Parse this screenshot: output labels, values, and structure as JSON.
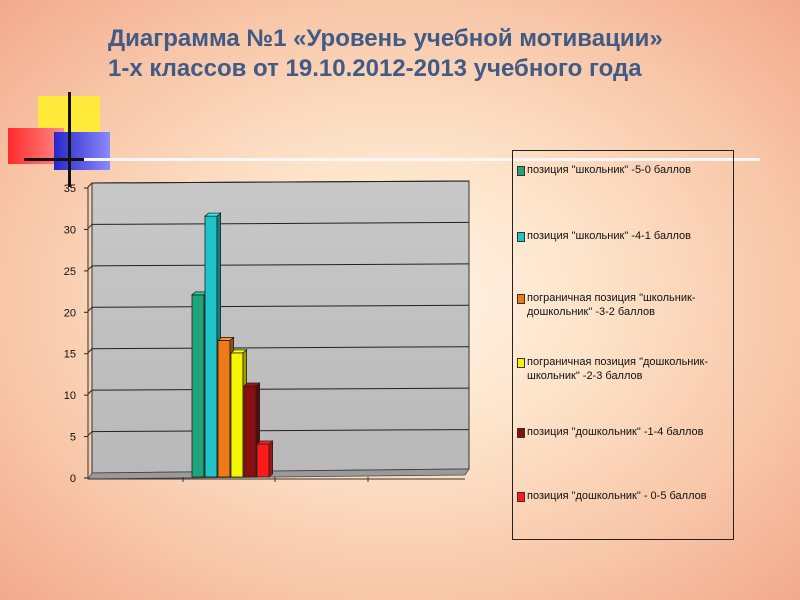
{
  "title_line1": "Диаграмма №1 «Уровень учебной мотивации»",
  "title_line2": "1-х классов от 19.10.2012-2013 учебного года",
  "chart_data": {
    "type": "bar",
    "title": "",
    "xlabel": "",
    "ylabel": "",
    "ylim": [
      0,
      35
    ],
    "yticks": [
      0,
      5,
      10,
      15,
      20,
      25,
      30,
      35
    ],
    "grid": true,
    "legend_position": "right",
    "series": [
      {
        "name": "позиция \"школьник\" -5-0 баллов",
        "values": [
          21.5
        ],
        "color": "#1fa37a"
      },
      {
        "name": "позиция \"школьник\" -4-1 баллов",
        "values": [
          31
        ],
        "color": "#20c3c8"
      },
      {
        "name": "пограничная позиция \"школьник-дошкольник\" -3-2 баллов",
        "values": [
          16
        ],
        "color": "#f07a18"
      },
      {
        "name": "пограничная позиция \"дошкольник-школьник\" -2-3 баллов",
        "values": [
          14.5
        ],
        "color": "#f5f500"
      },
      {
        "name": "позиция \"дошкольник\" -1-4 баллов",
        "values": [
          10.5
        ],
        "color": "#8b0f0f"
      },
      {
        "name": "позиция \"дошкольник\" - 0-5 баллов",
        "values": [
          3.5
        ],
        "color": "#ff1a1a"
      }
    ]
  }
}
